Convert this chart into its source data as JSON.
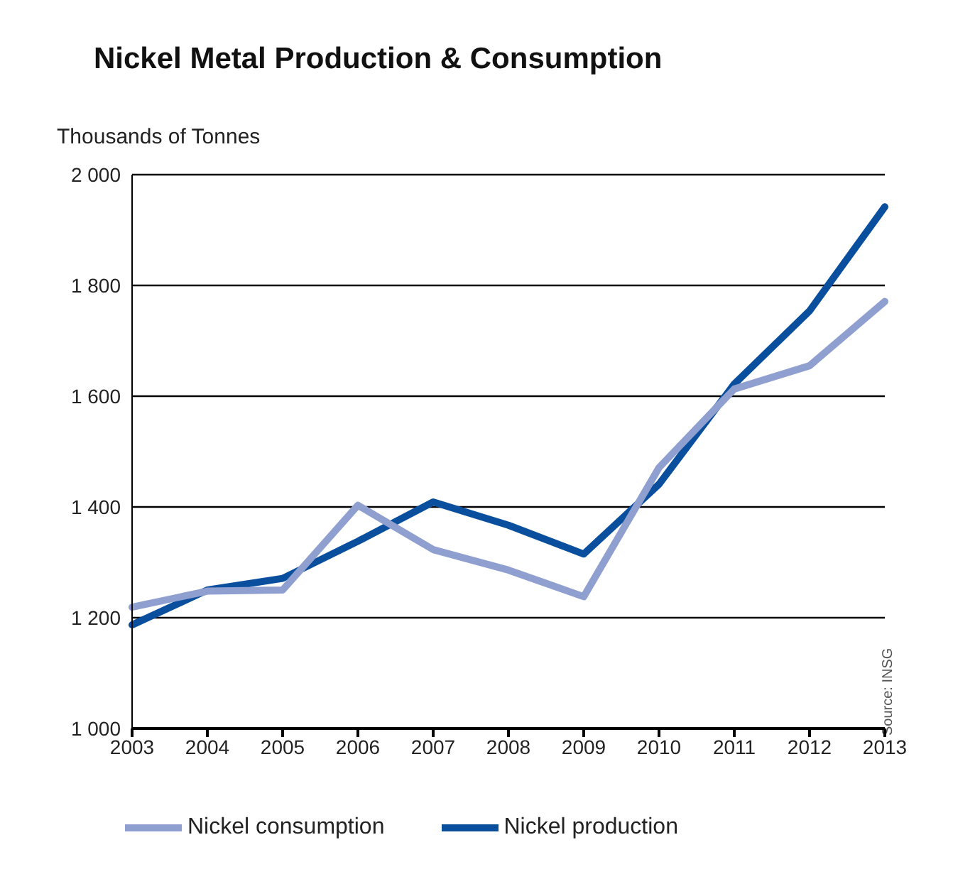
{
  "chart_data": {
    "type": "line",
    "title": "Nickel Metal Production & Consumption",
    "ylabel": "Thousands of Tonnes",
    "annotations": [
      "Source: INSG"
    ],
    "categories": [
      "2003",
      "2004",
      "2005",
      "2006",
      "2007",
      "2008",
      "2009",
      "2010",
      "2011",
      "2012",
      "2013"
    ],
    "series": [
      {
        "name": "Nickel production",
        "color": "#0a4f9e",
        "values": [
          1187,
          1250,
          1271,
          1338,
          1409,
          1367,
          1315,
          1441,
          1622,
          1754,
          1942
        ]
      },
      {
        "name": "Nickel consumption",
        "color": "#8e9fd0",
        "values": [
          1219,
          1248,
          1250,
          1403,
          1323,
          1286,
          1238,
          1471,
          1613,
          1655,
          1771
        ]
      }
    ],
    "ylim": [
      1000,
      2000
    ],
    "yticks": [
      {
        "value": 1000,
        "label": "1 000"
      },
      {
        "value": 1200,
        "label": "1 200"
      },
      {
        "value": 1400,
        "label": "1 400"
      },
      {
        "value": 1600,
        "label": "1 600"
      },
      {
        "value": 1800,
        "label": "1 800"
      },
      {
        "value": 2000,
        "label": "2 000"
      }
    ],
    "grid": "y",
    "legend": "bottom",
    "marker": "none",
    "line_style": "solid"
  }
}
